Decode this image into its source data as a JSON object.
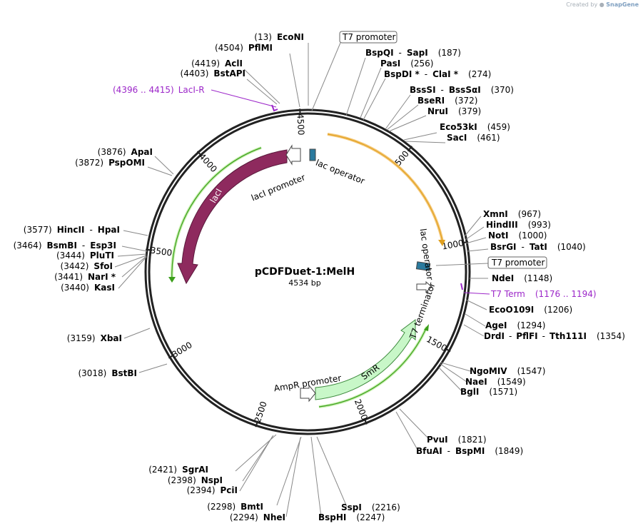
{
  "credit": {
    "prefix": "Created by",
    "brand": "SnapGene"
  },
  "plasmid": {
    "name": "pCDFDuet-1:MelH",
    "length_label": "4534 bp",
    "length": 4534
  },
  "ticks": [
    {
      "bp": 500,
      "label": "500"
    },
    {
      "bp": 1000,
      "label": "1000"
    },
    {
      "bp": 1500,
      "label": "1500"
    },
    {
      "bp": 2000,
      "label": "2000"
    },
    {
      "bp": 2500,
      "label": "2500"
    },
    {
      "bp": 3000,
      "label": "3000"
    },
    {
      "bp": 3500,
      "label": "3500"
    },
    {
      "bp": 4000,
      "label": "4000"
    },
    {
      "bp": 4500,
      "label": "4500"
    }
  ],
  "features": [
    {
      "name": "lacI",
      "color": "#8e2a5e"
    },
    {
      "name": "SmR",
      "color": "#c8f7c8"
    },
    {
      "name": "lacI promoter"
    },
    {
      "name": "lac operator"
    },
    {
      "name": "lac operator"
    },
    {
      "name": "T7 terminator"
    },
    {
      "name": "AmpR promoter"
    }
  ],
  "features_text": {
    "laci": "lacI",
    "smr": "SmR",
    "laci_promoter": "lacI promoter",
    "lac_operator_top": "lac operator",
    "lac_operator_right": "lac operator",
    "t7_terminator": "T7 terminator",
    "ampr_promoter": "AmpR promoter"
  },
  "boxed_labels": {
    "t7_promoter_top": "T7 promoter",
    "t7_promoter_right": "T7 promoter"
  },
  "primers": [
    {
      "range": "(4396 .. 4415)",
      "name": "LacI-R"
    },
    {
      "name": "T7 Term",
      "range": "(1176 .. 1194)"
    }
  ],
  "sites": [
    {
      "pos": "(13)",
      "name": "EcoNI"
    },
    {
      "pos": "(4504)",
      "name": "PflMI"
    },
    {
      "pos": "(4419)",
      "name": "AclI"
    },
    {
      "pos": "(4403)",
      "name": "BstAPI"
    },
    {
      "name": "BspQI",
      "name2": "SapI",
      "pos": "(187)"
    },
    {
      "name": "PasI",
      "pos": "(256)"
    },
    {
      "name": "BspDI *",
      "name2": "ClaI *",
      "pos": "(274)"
    },
    {
      "name": "BssSI",
      "name2": "BssSαI",
      "pos": "(370)"
    },
    {
      "name": "BseRI",
      "pos": "(372)"
    },
    {
      "name": "NruI",
      "pos": "(379)"
    },
    {
      "name": "Eco53kI",
      "pos": "(459)"
    },
    {
      "name": "SacI",
      "pos": "(461)"
    },
    {
      "pos": "(3876)",
      "name": "ApaI"
    },
    {
      "pos": "(3872)",
      "name": "PspOMI"
    },
    {
      "name": "XmnI",
      "pos": "(967)"
    },
    {
      "name": "HindIII",
      "pos": "(993)"
    },
    {
      "name": "NotI",
      "pos": "(1000)"
    },
    {
      "name": "BsrGI",
      "name2": "TatI",
      "pos": "(1040)"
    },
    {
      "name": "NdeI",
      "pos": "(1148)"
    },
    {
      "name": "EcoO109I",
      "pos": "(1206)"
    },
    {
      "name": "AgeI",
      "pos": "(1294)"
    },
    {
      "name": "DrdI",
      "name2": "PflFI",
      "name3": "Tth111I",
      "pos": "(1354)"
    },
    {
      "pos": "(3577)",
      "name": "HincII",
      "name2": "HpaI"
    },
    {
      "pos": "(3464)",
      "name": "BsmBI",
      "name2": "Esp3I"
    },
    {
      "pos": "(3444)",
      "name": "PluTI"
    },
    {
      "pos": "(3442)",
      "name": "SfoI"
    },
    {
      "pos": "(3441)",
      "name": "NarI *"
    },
    {
      "pos": "(3440)",
      "name": "KasI"
    },
    {
      "pos": "(3159)",
      "name": "XbaI"
    },
    {
      "pos": "(3018)",
      "name": "BstBI"
    },
    {
      "name": "NgoMIV",
      "pos": "(1547)"
    },
    {
      "name": "NaeI",
      "pos": "(1549)"
    },
    {
      "name": "BglI",
      "pos": "(1571)"
    },
    {
      "name": "PvuI",
      "pos": "(1821)"
    },
    {
      "name": "BfuAI",
      "name2": "BspMI",
      "pos": "(1849)"
    },
    {
      "pos": "(2421)",
      "name": "SgrAI"
    },
    {
      "pos": "(2398)",
      "name": "NspI"
    },
    {
      "pos": "(2394)",
      "name": "PciI"
    },
    {
      "pos": "(2298)",
      "name": "BmtI"
    },
    {
      "pos": "(2294)",
      "name": "NheI"
    },
    {
      "name": "SspI",
      "pos": "(2216)"
    },
    {
      "name": "BspHI",
      "pos": "(2247)"
    }
  ],
  "colors": {
    "backbone": "#222222",
    "laci": "#8e2a5e",
    "laci_outline": "#5a1a3c",
    "smr": "#c8f7c8",
    "smr_outline": "#3d8a3d",
    "green_arc": "#3a9e1a",
    "orange_arc": "#e0a020",
    "operator": "#2a7a9e",
    "primer": "#9c27c9",
    "leader": "#888888"
  }
}
